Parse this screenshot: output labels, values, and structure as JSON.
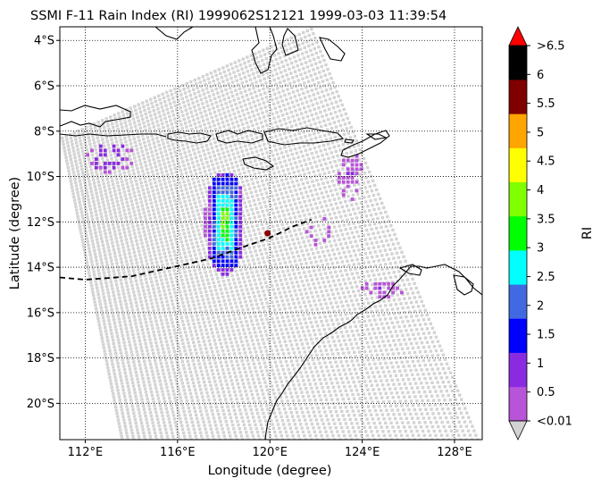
{
  "title": "SSMI F-11 Rain Index (RI) 1999062S12121 1999-03-03 11:39:54",
  "chart_data": {
    "type": "heatmap",
    "title": "SSMI F-11 Rain Index (RI) 1999062S12121 1999-03-03 11:39:54",
    "xlabel": "Longitude (degree)",
    "ylabel": "Latitude (degree)",
    "xlim": [
      110.9,
      129.2
    ],
    "ylim": [
      -21.6,
      -3.4
    ],
    "x_ticks": [
      112,
      116,
      120,
      124,
      128
    ],
    "x_tick_labels": [
      "112°E",
      "116°E",
      "120°E",
      "124°E",
      "128°E"
    ],
    "y_ticks": [
      -4,
      -6,
      -8,
      -10,
      -12,
      -14,
      -16,
      -18,
      -20
    ],
    "y_tick_labels": [
      "4°S",
      "6°S",
      "8°S",
      "10°S",
      "12°S",
      "14°S",
      "16°S",
      "18°S",
      "20°S"
    ],
    "grid": true,
    "grid_style": "dotted",
    "colorbar": {
      "label": "RI",
      "tick_labels": [
        "<0.01",
        "0.5",
        "1",
        "1.5",
        "2",
        "2.5",
        "3",
        "3.5",
        "4",
        "4.5",
        "5",
        "5.5",
        "6",
        ">6.5"
      ],
      "bins": [
        {
          "from": 0.01,
          "to": 0.5,
          "color": "#b754d8"
        },
        {
          "from": 0.5,
          "to": 1.0,
          "color": "#8a2be2"
        },
        {
          "from": 1.0,
          "to": 1.5,
          "color": "#0000ff"
        },
        {
          "from": 1.5,
          "to": 2.0,
          "color": "#4169e1"
        },
        {
          "from": 2.0,
          "to": 2.5,
          "color": "#00ffff"
        },
        {
          "from": 2.5,
          "to": 3.0,
          "color": "#00ff00"
        },
        {
          "from": 3.0,
          "to": 3.5,
          "color": "#7fff00"
        },
        {
          "from": 3.5,
          "to": 4.0,
          "color": "#ffff00"
        },
        {
          "from": 4.0,
          "to": 4.5,
          "color": "#ffa500"
        },
        {
          "from": 4.5,
          "to": 5.0,
          "color": "#800000"
        },
        {
          "from": 5.0,
          "to": 6.5,
          "color": "#000000"
        }
      ],
      "under_color": "#d3d3d3",
      "over_color": "#ff0000"
    },
    "swath": {
      "no_rain_color": "#d3d3d3",
      "corners_lonlat": [
        [
          111.0,
          -8.3
        ],
        [
          121.8,
          -3.5
        ],
        [
          129.0,
          -21.6
        ],
        [
          113.6,
          -21.6
        ]
      ]
    },
    "rain_regions": [
      {
        "lon_range": [
          117.2,
          118.9
        ],
        "lat_range": [
          -14.3,
          -9.8
        ],
        "peak_ri": 3.5
      },
      {
        "lon_range": [
          112.1,
          114.1
        ],
        "lat_range": [
          -9.8,
          -8.5
        ],
        "peak_ri": 1.0
      },
      {
        "lon_range": [
          121.6,
          122.7
        ],
        "lat_range": [
          -13.0,
          -11.8
        ],
        "peak_ri": 0.5
      },
      {
        "lon_range": [
          124.0,
          125.8
        ],
        "lat_range": [
          -15.3,
          -14.6
        ],
        "peak_ri": 0.5
      },
      {
        "lon_range": [
          123.0,
          124.0
        ],
        "lat_range": [
          -11.0,
          -9.0
        ],
        "peak_ri": 0.5
      }
    ],
    "storm_track": {
      "style": "dashed",
      "lonlat": [
        [
          110.9,
          -14.45
        ],
        [
          112.0,
          -14.55
        ],
        [
          114.0,
          -14.4
        ],
        [
          116.0,
          -13.95
        ],
        [
          117.5,
          -13.6
        ],
        [
          119.0,
          -13.05
        ],
        [
          120.0,
          -12.7
        ],
        [
          121.0,
          -12.2
        ],
        [
          121.8,
          -11.9
        ]
      ]
    },
    "storm_center": {
      "lon": 119.9,
      "lat": -12.5,
      "color": "#8b0000"
    }
  }
}
